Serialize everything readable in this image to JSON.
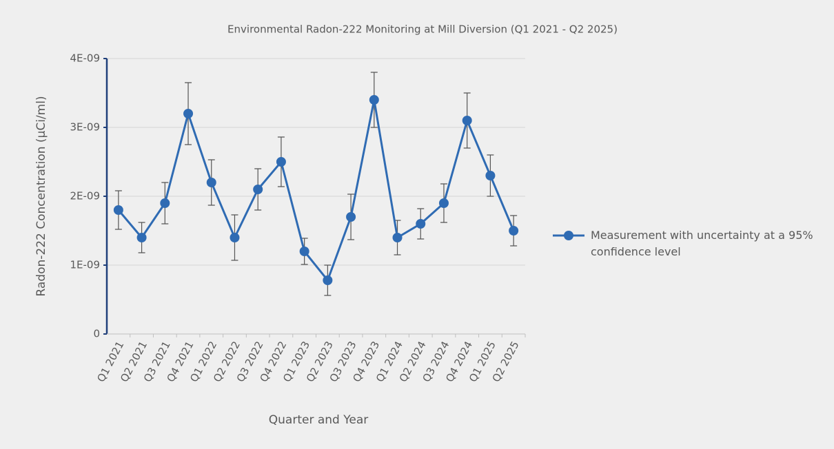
{
  "chart_data": {
    "type": "line",
    "title": "Environmental Radon-222 Monitoring at Mill Diversion (Q1 2021 - Q2 2025)",
    "x_label": "Quarter and Year",
    "y_label": "Radon-222 Concentration (µCi/ml)",
    "categories": [
      "Q1 2021",
      "Q2 2021",
      "Q3 2021",
      "Q4 2021",
      "Q1 2022",
      "Q2 2022",
      "Q3 2022",
      "Q4 2022",
      "Q1 2023",
      "Q2 2023",
      "Q3 2023",
      "Q4 2023",
      "Q1 2024",
      "Q2 2024",
      "Q3 2024",
      "Q4 2024",
      "Q1 2025",
      "Q2 2025"
    ],
    "series": [
      {
        "name": "Measurement with uncertainty at a 95% confidence level",
        "color": "#2f6bb3",
        "values": [
          1.8e-09,
          1.4e-09,
          1.9e-09,
          3.2e-09,
          2.2e-09,
          1.4e-09,
          2.1e-09,
          2.5e-09,
          1.2e-09,
          7.8e-10,
          1.7e-09,
          3.4e-09,
          1.4e-09,
          1.6e-09,
          1.9e-09,
          3.1e-09,
          2.3e-09,
          1.5e-09
        ],
        "errors": [
          2.8e-10,
          2.2e-10,
          3e-10,
          4.5e-10,
          3.3e-10,
          3.3e-10,
          3e-10,
          3.6e-10,
          1.9e-10,
          2.2e-10,
          3.3e-10,
          4e-10,
          2.5e-10,
          2.2e-10,
          2.8e-10,
          4e-10,
          3e-10,
          2.2e-10
        ]
      }
    ],
    "ylim": [
      0,
      4e-09
    ],
    "yticks": [
      0,
      {
        "value": 1e-09,
        "label": "1E-09"
      },
      {
        "value": 2e-09,
        "label": "2E-09"
      },
      {
        "value": 3e-09,
        "label": "3E-09"
      },
      {
        "value": 4e-09,
        "label": "4E-09"
      }
    ],
    "grid": true,
    "legend": "right"
  }
}
